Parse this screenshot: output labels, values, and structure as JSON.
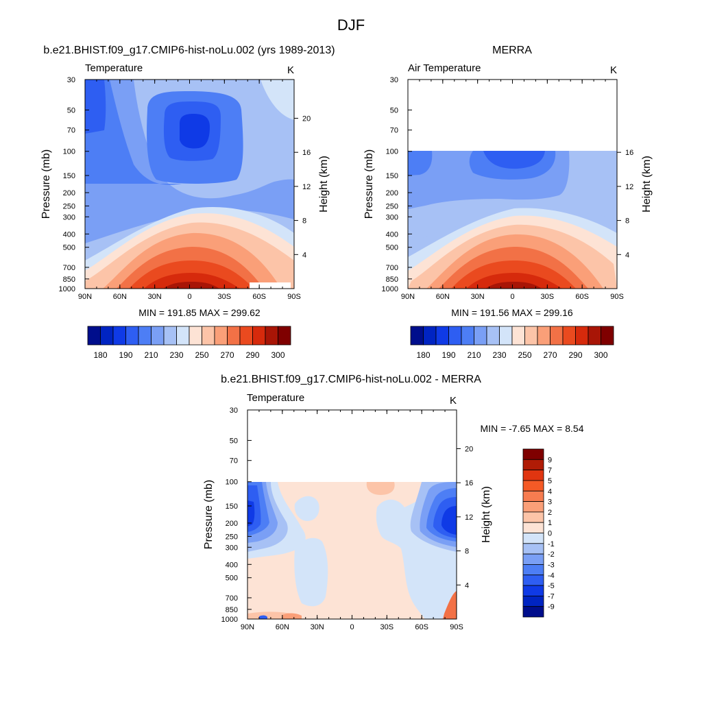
{
  "figure_title": "DJF",
  "colors": {
    "temp": [
      "#000e8c",
      "#0024c2",
      "#0f3ae6",
      "#2e5ef2",
      "#4d7ef5",
      "#7a9ff5",
      "#a7c1f5",
      "#d3e4f9",
      "#fde3d5",
      "#fcc4a8",
      "#fa9f78",
      "#f27146",
      "#ea4a1f",
      "#d62a0c",
      "#a81506",
      "#7f0000"
    ],
    "diff": [
      "#7f0000",
      "#b01c06",
      "#e03510",
      "#f55a26",
      "#f77c50",
      "#fa9f78",
      "#fcc4a8",
      "#fde3d5",
      "#d3e4f9",
      "#a7c1f5",
      "#7a9ff5",
      "#4d7ef5",
      "#2e5ef2",
      "#0f3ae6",
      "#0024c2",
      "#000e8c"
    ]
  },
  "chart_data": [
    {
      "type": "heatmap",
      "id": "model",
      "title": "b.e21.BHIST.f09_g17.CMIP6-hist-noLu.002 (yrs 1989-2013)",
      "left_label": "Temperature",
      "right_label": "K",
      "ylabel": "Pressure (mb)",
      "y2label": "Height (km)",
      "x_ticks": [
        "90N",
        "60N",
        "30N",
        "0",
        "30S",
        "60S",
        "90S"
      ],
      "y_ticks": [
        "30",
        "50",
        "70",
        "100",
        "150",
        "200",
        "250",
        "300",
        "400",
        "500",
        "700",
        "850",
        "1000"
      ],
      "y2_ticks": [
        "20",
        "16",
        "12",
        "8",
        "4"
      ],
      "ylim": [
        30,
        1000
      ],
      "min_max_text": "MIN = 191.85  MAX = 299.62",
      "min": 191.85,
      "max": 299.62,
      "colorbar_labels": [
        "180",
        "190",
        "210",
        "230",
        "250",
        "270",
        "290",
        "300"
      ]
    },
    {
      "type": "heatmap",
      "id": "obs",
      "title": "MERRA",
      "left_label": "Air Temperature",
      "right_label": "K",
      "ylabel": "Pressure (mb)",
      "y2label": "Height (km)",
      "x_ticks": [
        "90N",
        "60N",
        "30N",
        "0",
        "30S",
        "60S",
        "90S"
      ],
      "y_ticks": [
        "30",
        "50",
        "70",
        "100",
        "150",
        "200",
        "250",
        "300",
        "400",
        "500",
        "700",
        "850",
        "1000"
      ],
      "y2_ticks": [
        "16",
        "12",
        "8",
        "4"
      ],
      "ylim": [
        30,
        1000
      ],
      "data_top_mb": 100,
      "min_max_text": "MIN = 191.56  MAX = 299.16",
      "min": 191.56,
      "max": 299.16,
      "colorbar_labels": [
        "180",
        "190",
        "210",
        "230",
        "250",
        "270",
        "290",
        "300"
      ]
    },
    {
      "type": "heatmap",
      "id": "diff",
      "title": "b.e21.BHIST.f09_g17.CMIP6-hist-noLu.002 - MERRA",
      "left_label": "Temperature",
      "right_label": "K",
      "ylabel": "Pressure (mb)",
      "y2label": "Height (km)",
      "x_ticks": [
        "90N",
        "60N",
        "30N",
        "0",
        "30S",
        "60S",
        "90S"
      ],
      "y_ticks": [
        "30",
        "50",
        "70",
        "100",
        "150",
        "200",
        "250",
        "300",
        "400",
        "500",
        "700",
        "850",
        "1000"
      ],
      "y2_ticks": [
        "20",
        "16",
        "12",
        "8",
        "4"
      ],
      "ylim": [
        30,
        1000
      ],
      "data_top_mb": 100,
      "min_max_text": "MIN =  -7.65  MAX =   8.54",
      "min": -7.65,
      "max": 8.54,
      "colorbar_labels": [
        "9",
        "7",
        "5",
        "4",
        "3",
        "2",
        "1",
        "0",
        "-1",
        "-2",
        "-3",
        "-4",
        "-5",
        "-7",
        "-9"
      ]
    }
  ]
}
